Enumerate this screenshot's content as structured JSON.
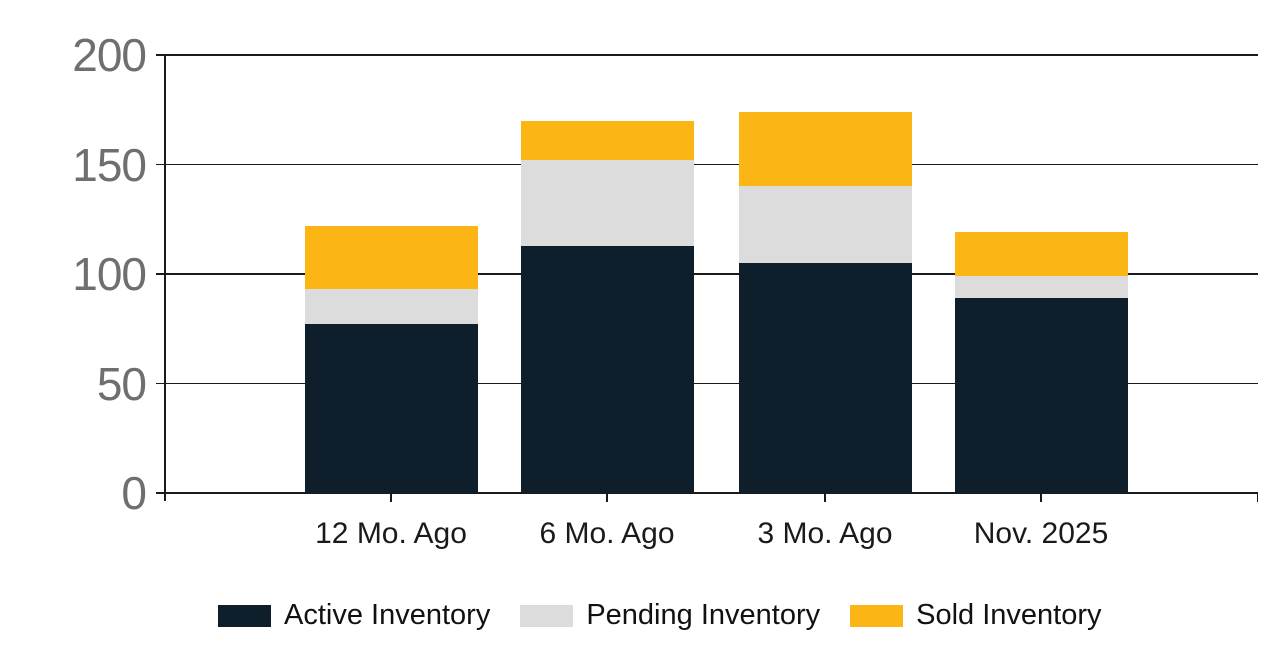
{
  "chart_data": {
    "type": "bar",
    "stacked": true,
    "title": "",
    "xlabel": "",
    "ylabel": "",
    "categories": [
      "12 Mo. Ago",
      "6 Mo. Ago",
      "3 Mo. Ago",
      "Nov. 2025"
    ],
    "series": [
      {
        "name": "Active Inventory",
        "color": "#0f1e2b",
        "values": [
          77,
          113,
          105,
          89
        ]
      },
      {
        "name": "Pending Inventory",
        "color": "#dcdcdc",
        "values": [
          16,
          39,
          35,
          10
        ]
      },
      {
        "name": "Sold Inventory",
        "color": "#fbb515",
        "values": [
          29,
          18,
          34,
          20
        ]
      }
    ],
    "stack_totals": [
      122,
      170,
      174,
      119
    ],
    "ylim": [
      0,
      200
    ],
    "y_ticks": [
      0,
      50,
      100,
      150,
      200
    ],
    "grid": true,
    "legend_position": "bottom"
  },
  "colors": {
    "axis_line": "#1a1a1a",
    "y_tick_label": "#6f6f6f",
    "category_label": "#1a1a1a",
    "legend_label": "#111111",
    "background": "#ffffff"
  }
}
